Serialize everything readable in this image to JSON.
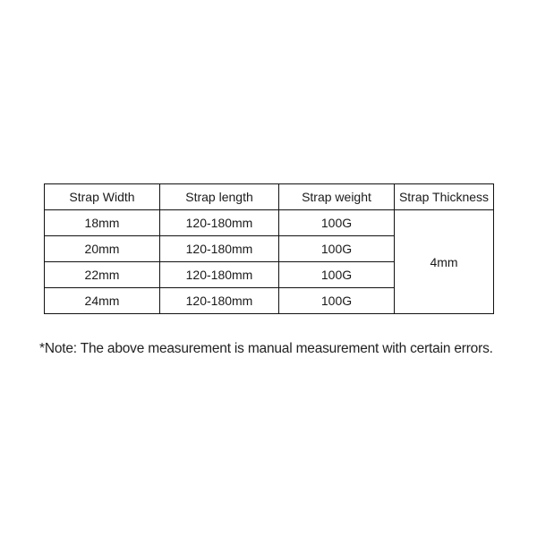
{
  "table": {
    "headers": [
      "Strap Width",
      "Strap length",
      "Strap weight",
      "Strap Thickness"
    ],
    "rows": [
      [
        "18mm",
        "120-180mm",
        "100G"
      ],
      [
        "20mm",
        "120-180mm",
        "100G"
      ],
      [
        "22mm",
        "120-180mm",
        "100G"
      ],
      [
        "24mm",
        "120-180mm",
        "100G"
      ]
    ],
    "thickness": "4mm"
  },
  "note": "*Note: The above measurement is manual measurement with certain errors."
}
